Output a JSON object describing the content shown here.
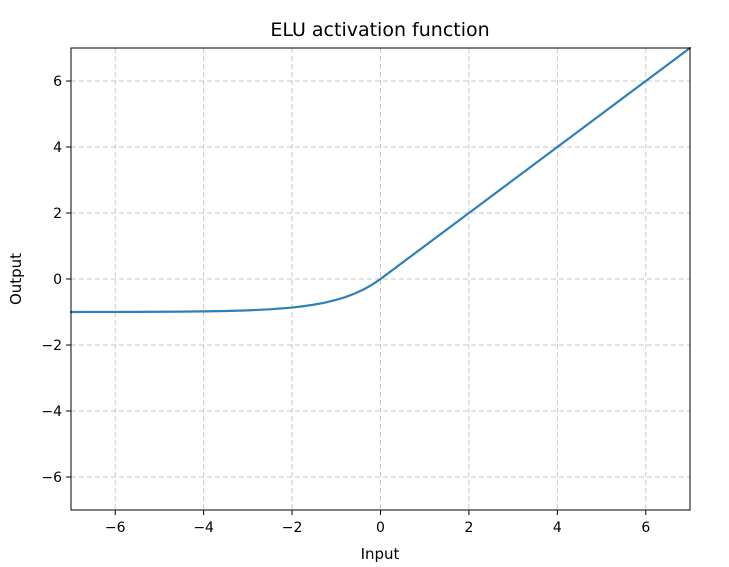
{
  "chart_data": {
    "type": "line",
    "title": "ELU activation function",
    "xlabel": "Input",
    "ylabel": "Output",
    "xlim": [
      -7,
      7
    ],
    "ylim": [
      -7,
      7
    ],
    "x_ticks": [
      -6,
      -4,
      -2,
      0,
      2,
      4,
      6
    ],
    "y_ticks": [
      -6,
      -4,
      -2,
      0,
      2,
      4,
      6
    ],
    "x_tick_labels": [
      "−6",
      "−4",
      "−2",
      "0",
      "2",
      "4",
      "6"
    ],
    "y_tick_labels": [
      "−6",
      "−4",
      "−2",
      "0",
      "2",
      "4",
      "6"
    ],
    "grid": true,
    "series": [
      {
        "color": "#2f7fb8",
        "x": [
          -7,
          -6.5,
          -6,
          -5.5,
          -5,
          -4.5,
          -4,
          -3.5,
          -3,
          -2.5,
          -2,
          -1.75,
          -1.5,
          -1.25,
          -1,
          -0.8,
          -0.6,
          -0.4,
          -0.2,
          0,
          1,
          2,
          3,
          4,
          5,
          6,
          7
        ],
        "y": [
          -0.999,
          -0.998,
          -0.998,
          -0.996,
          -0.993,
          -0.989,
          -0.982,
          -0.97,
          -0.95,
          -0.918,
          -0.865,
          -0.826,
          -0.777,
          -0.713,
          -0.632,
          -0.551,
          -0.451,
          -0.33,
          -0.181,
          0,
          1,
          2,
          3,
          4,
          5,
          6,
          7
        ]
      }
    ]
  }
}
